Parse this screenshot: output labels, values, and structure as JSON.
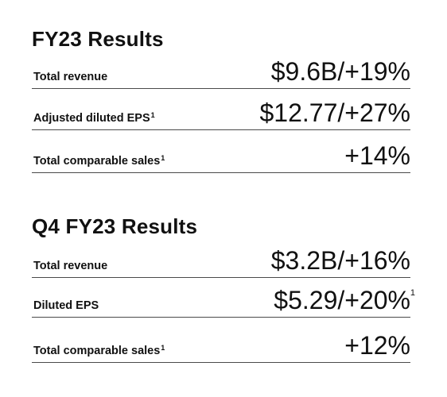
{
  "fy23": {
    "title": "FY23 Results",
    "rows": [
      {
        "label": "Total revenue",
        "footnote": "",
        "value": "$9.6B/+19%",
        "value_footnote": ""
      },
      {
        "label": "Adjusted diluted EPS",
        "footnote": "1",
        "value": "$12.77/+27%",
        "value_footnote": ""
      },
      {
        "label": "Total comparable sales",
        "footnote": "1",
        "value": "+14%",
        "value_footnote": ""
      }
    ]
  },
  "q4": {
    "title": "Q4 FY23 Results",
    "rows": [
      {
        "label": "Total revenue",
        "footnote": "",
        "value": "$3.2B/+16%",
        "value_footnote": ""
      },
      {
        "label": "Diluted EPS",
        "footnote": "",
        "value": "$5.29/+20%",
        "value_footnote": "1"
      },
      {
        "label": "Total comparable sales",
        "footnote": "1",
        "value": "+12%",
        "value_footnote": ""
      }
    ]
  }
}
